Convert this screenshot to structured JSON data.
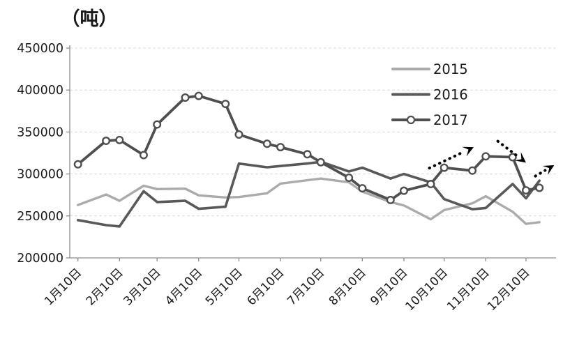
{
  "chart_data": {
    "type": "line",
    "title": "（吨）",
    "unit_label": "（吨）",
    "ylim": [
      200000,
      450000
    ],
    "ytick_step": 50000,
    "yticks": [
      450000,
      400000,
      350000,
      300000,
      250000,
      200000
    ],
    "xticklabels": [
      "1月10日",
      "2月10日",
      "3月10日",
      "4月10日",
      "5月10日",
      "6月10日",
      "7月10日",
      "8月10日",
      "9月10日",
      "10月10日",
      "11月10日",
      "12月10日"
    ],
    "xtick_days": [
      0,
      31,
      59,
      90,
      120,
      151,
      181,
      212,
      243,
      273,
      304,
      334
    ],
    "point_days": [
      0,
      21,
      31,
      49,
      59,
      80,
      90,
      110,
      120,
      141,
      151,
      171,
      181,
      202,
      212,
      233,
      243,
      263,
      273,
      294,
      304,
      324,
      334,
      344
    ],
    "grid": "on",
    "legend_position": "upper-right",
    "legend_labels": [
      "2015",
      "2016",
      "2017"
    ],
    "series": [
      {
        "name": "2015",
        "color": "#ababab",
        "width": 3.4,
        "markers": false,
        "values": [
          263000,
          275500,
          268000,
          286000,
          282000,
          282500,
          274500,
          272000,
          272500,
          277000,
          288500,
          292500,
          294500,
          290000,
          279000,
          266500,
          262500,
          246000,
          257000,
          265000,
          273500,
          255000,
          240500,
          242500
        ]
      },
      {
        "name": "2016",
        "color": "#595959",
        "width": 3.6,
        "markers": false,
        "values": [
          245000,
          239000,
          237500,
          279500,
          266500,
          268000,
          258500,
          261000,
          312500,
          308000,
          309500,
          312500,
          314500,
          303000,
          307500,
          294500,
          300000,
          290000,
          270000,
          258000,
          259500,
          288000,
          271000,
          292000
        ]
      },
      {
        "name": "2017",
        "color": "#4f4f4f",
        "width": 3.8,
        "markers": true,
        "marker_style": "open-circle",
        "values": [
          311500,
          339500,
          340500,
          322500,
          359000,
          391000,
          393000,
          383500,
          347000,
          336000,
          332000,
          323500,
          314000,
          295500,
          283000,
          269000,
          280000,
          288000,
          307500,
          304000,
          321000,
          320000,
          280500,
          283500
        ]
      }
    ],
    "annotations": {
      "arrows": [
        {
          "name": "trend-up-arrow",
          "d1": 262,
          "v1": 307000,
          "d2": 295,
          "v2": 332000
        },
        {
          "name": "trend-down-arrow",
          "d1": 313,
          "v1": 339000,
          "d2": 334,
          "v2": 313500
        },
        {
          "name": "trend-up-end-arrow",
          "d1": 341,
          "v1": 297500,
          "d2": 355,
          "v2": 310500
        }
      ],
      "color": "#000000"
    },
    "style": {
      "grid_color": "#d8d8d8",
      "axis_color": "#8c8c8c",
      "text_color": "#1a1a1a",
      "marker_fill": "#ffffff"
    }
  }
}
